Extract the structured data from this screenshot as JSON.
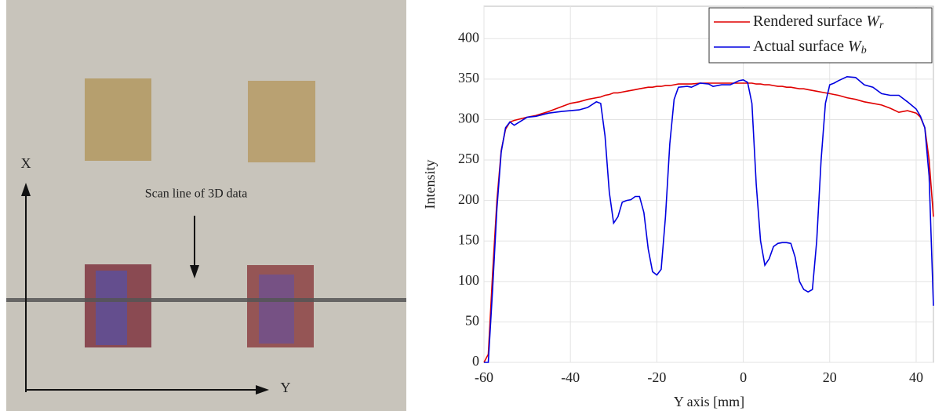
{
  "photo": {
    "x_label": "X",
    "y_label": "Y",
    "annotation": "Scan line of 3D data"
  },
  "chart_data": {
    "type": "line",
    "xlabel": "Y axis [mm]",
    "ylabel": "Intensity",
    "x": [
      -60,
      -59,
      -58,
      -57,
      -56,
      -55,
      -54,
      -53,
      -50,
      -48,
      -45,
      -42,
      -40,
      -38,
      -36,
      -34,
      -33,
      -32,
      -31,
      -30,
      -29,
      -28,
      -27,
      -26,
      -25,
      -24,
      -23,
      -22,
      -21,
      -20,
      -19,
      -18,
      -17,
      -16,
      -15,
      -13,
      -12,
      -10,
      -8,
      -7,
      -5,
      -3,
      -1,
      0,
      1,
      2,
      3,
      4,
      5,
      6,
      7,
      8,
      9,
      10,
      11,
      12,
      13,
      14,
      15,
      16,
      17,
      18,
      19,
      20,
      21,
      22,
      24,
      26,
      28,
      30,
      32,
      34,
      36,
      38,
      40,
      41,
      42,
      43,
      44
    ],
    "series": [
      {
        "name": "Rendered surface Wr",
        "color": "#e00000",
        "values": [
          0,
          10,
          110,
          200,
          262,
          288,
          297,
          299,
          303,
          305,
          310,
          316,
          320,
          322,
          325,
          327,
          328,
          330,
          331,
          333,
          333,
          334,
          335,
          336,
          337,
          338,
          339,
          340,
          340,
          341,
          341,
          342,
          342,
          343,
          344,
          344,
          344,
          345,
          345,
          345,
          345,
          345,
          345,
          345,
          345,
          345,
          344,
          344,
          343,
          343,
          342,
          341,
          341,
          340,
          340,
          339,
          338,
          338,
          337,
          336,
          335,
          334,
          333,
          332,
          331,
          330,
          327,
          325,
          322,
          320,
          318,
          314,
          309,
          311,
          308,
          303,
          290,
          250,
          180
        ]
      },
      {
        "name": "Actual surface Wb",
        "color": "#0000e0",
        "values": [
          0,
          0,
          90,
          190,
          260,
          290,
          297,
          293,
          303,
          304,
          308,
          310,
          311,
          312,
          315,
          322,
          320,
          280,
          210,
          172,
          180,
          198,
          200,
          201,
          205,
          205,
          185,
          140,
          112,
          108,
          115,
          180,
          270,
          325,
          340,
          341,
          340,
          345,
          344,
          341,
          343,
          343,
          348,
          349,
          346,
          320,
          220,
          150,
          120,
          128,
          143,
          147,
          148,
          148,
          147,
          130,
          100,
          90,
          87,
          90,
          150,
          250,
          320,
          343,
          345,
          348,
          353,
          352,
          343,
          340,
          332,
          330,
          330,
          322,
          313,
          304,
          290,
          230,
          70
        ]
      }
    ],
    "xlim": [
      -60,
      44
    ],
    "ylim": [
      0,
      440
    ],
    "xticks": [
      -60,
      -40,
      -20,
      0,
      20,
      40
    ],
    "yticks": [
      0,
      50,
      100,
      150,
      200,
      250,
      300,
      350,
      400
    ],
    "grid": true,
    "legend": "upper right"
  }
}
